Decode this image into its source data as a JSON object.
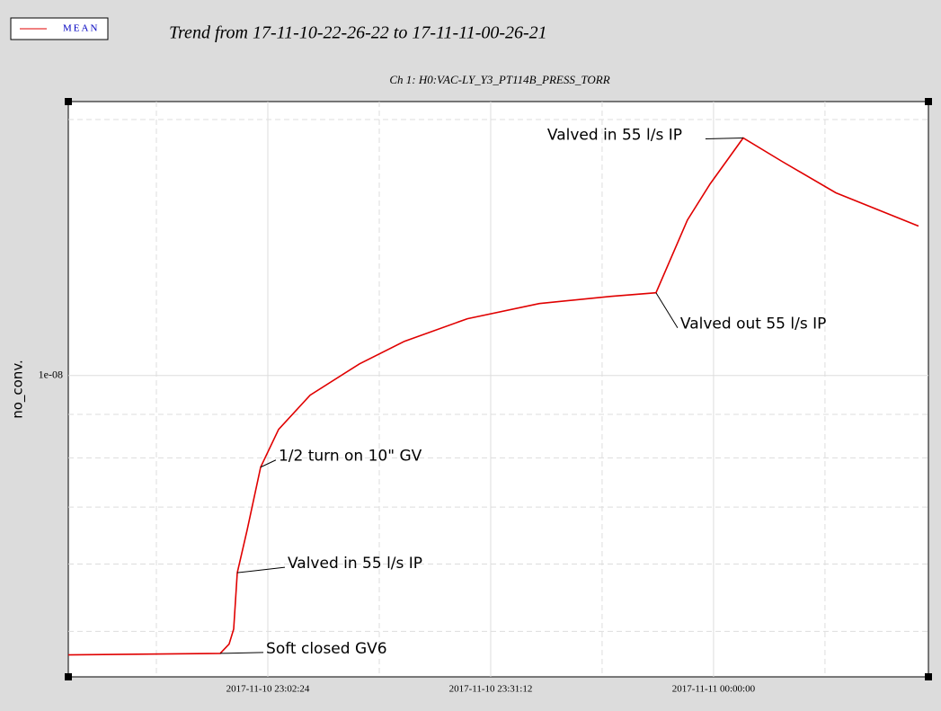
{
  "chart_data": {
    "type": "line",
    "legend_label": "MEAN",
    "title": "Trend from 17-11-10-22-26-22 to 17-11-11-00-26-21",
    "subtitle": "Ch 1: H0:VAC-LY_Y3_PT114B_PRESS_TORR",
    "y_label": "no_conv.",
    "log_y": true,
    "grid": true,
    "xlim": [
      "2017-11-10 22:36:37",
      "2017-11-11 00:27:46"
    ],
    "xticks": [
      "2017-11-10 23:02:24",
      "2017-11-10 23:31:12",
      "2017-11-11 00:00:00"
    ],
    "xminor": [
      "2017-11-10 22:48:00",
      "2017-11-10 23:16:48",
      "2017-11-10 23:45:36",
      "2017-11-11 00:14:24"
    ],
    "ylim": [
      4.42e-09,
      2.1e-08
    ],
    "yticks": [
      {
        "value": 1e-08,
        "label": "1e-08"
      }
    ],
    "yminor": [
      5e-09,
      6e-09,
      7e-09,
      8e-09,
      9e-09,
      2e-08
    ],
    "x": [
      "2017-11-10 22:36:37",
      "2017-11-10 22:56:15",
      "2017-11-10 22:57:24",
      "2017-11-10 22:57:59",
      "2017-11-10 22:58:27",
      "2017-11-10 22:59:44",
      "2017-11-10 23:01:28",
      "2017-11-10 23:03:48",
      "2017-11-10 23:07:52",
      "2017-11-10 23:14:15",
      "2017-11-10 23:20:03",
      "2017-11-10 23:28:11",
      "2017-11-10 23:37:29",
      "2017-11-10 23:46:46",
      "2017-11-10 23:52:34",
      "2017-11-10 23:56:38",
      "2017-11-10 23:59:33",
      "2017-11-11 00:03:50",
      "2017-11-11 00:08:50",
      "2017-11-11 00:15:48",
      "2017-11-11 00:26:29"
    ],
    "series": [
      {
        "name": "MEAN",
        "color": "#e00000",
        "values": [
          4.69e-09,
          4.71e-09,
          4.83e-09,
          5.03e-09,
          5.86e-09,
          6.58e-09,
          7.8e-09,
          8.64e-09,
          9.48e-09,
          1.032e-08,
          1.097e-08,
          1.166e-08,
          1.215e-08,
          1.239e-08,
          1.251e-08,
          1.524e-08,
          1.68e-08,
          1.903e-08,
          1.786e-08,
          1.64e-08,
          1.499e-08
        ]
      }
    ],
    "annotations": [
      {
        "text": "Soft closed GV6",
        "x": "2017-11-10 22:56:15",
        "y": 4.71e-09
      },
      {
        "text": "Valved in 55 l/s IP",
        "x": "2017-11-10 22:58:27",
        "y": 5.86e-09
      },
      {
        "text": "1/2 turn on 10\" GV",
        "x": "2017-11-10 23:01:28",
        "y": 7.8e-09
      },
      {
        "text": "Valved out 55 l/s IP",
        "x": "2017-11-10 23:52:34",
        "y": 1.251e-08
      },
      {
        "text": "Valved in 55 l/s IP",
        "x": "2017-11-11 00:03:50",
        "y": 1.903e-08
      }
    ]
  }
}
